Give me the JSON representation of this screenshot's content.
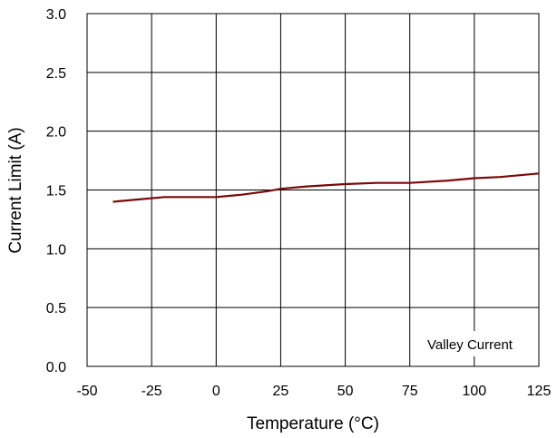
{
  "chart_data": {
    "type": "line",
    "title": "",
    "xlabel": "Temperature (°C)",
    "ylabel": "Current Limit (A)",
    "xlim": [
      -50,
      125
    ],
    "ylim": [
      0.0,
      3.0
    ],
    "x_ticks": [
      "-50",
      "-25",
      "0",
      "25",
      "50",
      "75",
      "100",
      "125"
    ],
    "y_ticks": [
      "0.0",
      "0.5",
      "1.0",
      "1.5",
      "2.0",
      "2.5",
      "3.0"
    ],
    "grid": true,
    "series": [
      {
        "name": "Valley Current",
        "color": "#7a0a0a",
        "points": [
          [
            -40,
            1.4
          ],
          [
            -30,
            1.42
          ],
          [
            -20,
            1.44
          ],
          [
            -10,
            1.44
          ],
          [
            0,
            1.44
          ],
          [
            10,
            1.46
          ],
          [
            20,
            1.49
          ],
          [
            25,
            1.51
          ],
          [
            35,
            1.53
          ],
          [
            50,
            1.55
          ],
          [
            62,
            1.56
          ],
          [
            75,
            1.56
          ],
          [
            90,
            1.58
          ],
          [
            100,
            1.6
          ],
          [
            110,
            1.61
          ],
          [
            125,
            1.64
          ]
        ]
      }
    ],
    "annotation": "Valley Current"
  }
}
